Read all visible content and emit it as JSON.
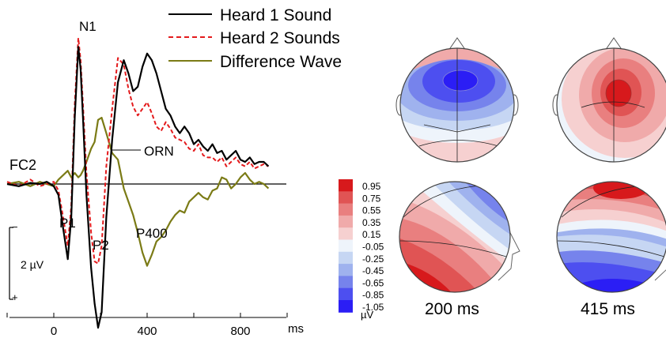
{
  "chart_data": [
    {
      "type": "line",
      "channel_label": "FC2",
      "xlabel": "ms",
      "x_ticks": [
        0,
        400,
        800
      ],
      "xlim": [
        -200,
        1000
      ],
      "amplitude_scale": {
        "label": "2 µV",
        "negative_sign": "−",
        "positive_sign": "+"
      },
      "grid": false,
      "legend_position": "top-right",
      "series": [
        {
          "name": "Heard 1 Sound",
          "color": "#000000",
          "dash": "solid",
          "x": [
            -200,
            -150,
            -100,
            -60,
            -30,
            0,
            20,
            40,
            60,
            75,
            90,
            105,
            115,
            125,
            140,
            160,
            175,
            190,
            205,
            225,
            250,
            275,
            300,
            320,
            340,
            360,
            380,
            400,
            420,
            440,
            460,
            480,
            500,
            520,
            540,
            560,
            580,
            600,
            620,
            640,
            660,
            680,
            700,
            720,
            740,
            760,
            780,
            800,
            820,
            840,
            860,
            880,
            900,
            920
          ],
          "y": [
            0.0,
            -0.1,
            0.05,
            0.0,
            0.1,
            -0.1,
            -0.5,
            -2.0,
            -3.4,
            -1.5,
            3.0,
            6.2,
            5.2,
            3.0,
            -0.5,
            -3.8,
            -5.4,
            -6.5,
            -5.8,
            -1.5,
            2.0,
            4.6,
            5.6,
            5.0,
            4.2,
            4.4,
            5.3,
            5.9,
            5.6,
            5.0,
            4.2,
            3.4,
            3.1,
            2.6,
            2.3,
            2.6,
            2.3,
            1.8,
            2.0,
            1.7,
            1.5,
            1.8,
            1.4,
            1.5,
            1.1,
            1.3,
            1.5,
            1.1,
            1.0,
            1.2,
            0.9,
            1.0,
            1.0,
            0.8
          ]
        },
        {
          "name": "Heard 2 Sounds",
          "color": "#e41a1c",
          "dash": "dashed",
          "x": [
            -200,
            -150,
            -100,
            -60,
            -30,
            0,
            20,
            40,
            60,
            75,
            90,
            105,
            115,
            125,
            140,
            160,
            175,
            190,
            205,
            225,
            250,
            275,
            300,
            320,
            340,
            360,
            380,
            400,
            420,
            440,
            460,
            480,
            500,
            520,
            540,
            560,
            580,
            600,
            620,
            640,
            660,
            680,
            700,
            720,
            740,
            760,
            780,
            800,
            820,
            840,
            860,
            880,
            900,
            920
          ],
          "y": [
            0.1,
            -0.1,
            0.2,
            -0.1,
            0.0,
            0.1,
            -0.3,
            -1.5,
            -2.8,
            -1.0,
            3.6,
            6.6,
            5.6,
            3.6,
            0.5,
            -2.2,
            -3.5,
            -3.6,
            -2.8,
            0.8,
            3.4,
            5.7,
            5.4,
            4.3,
            3.5,
            3.1,
            3.4,
            3.7,
            3.2,
            2.6,
            2.4,
            2.8,
            2.5,
            2.1,
            2.0,
            1.9,
            1.6,
            1.5,
            1.8,
            1.3,
            1.2,
            1.2,
            1.0,
            1.2,
            0.8,
            1.0,
            1.2,
            0.9,
            0.8,
            1.0,
            0.7,
            0.8,
            0.9,
            0.8
          ]
        },
        {
          "name": "Difference Wave",
          "color": "#7b7b16",
          "dash": "solid",
          "x": [
            -200,
            -150,
            -100,
            -60,
            -30,
            0,
            20,
            40,
            60,
            75,
            90,
            105,
            115,
            125,
            140,
            160,
            175,
            190,
            205,
            225,
            250,
            275,
            300,
            320,
            340,
            360,
            380,
            400,
            420,
            440,
            460,
            480,
            500,
            520,
            540,
            560,
            580,
            600,
            620,
            640,
            660,
            680,
            700,
            720,
            740,
            760,
            780,
            800,
            820,
            840,
            860,
            880,
            900,
            920
          ],
          "y": [
            0.0,
            0.1,
            -0.1,
            0.1,
            0.0,
            -0.1,
            0.2,
            0.4,
            0.6,
            0.3,
            0.5,
            0.3,
            0.4,
            0.6,
            1.0,
            1.6,
            1.9,
            2.9,
            3.0,
            2.3,
            1.4,
            1.1,
            -0.2,
            -0.8,
            -1.4,
            -2.2,
            -3.1,
            -3.7,
            -3.2,
            -2.6,
            -2.4,
            -2.1,
            -1.7,
            -1.4,
            -1.2,
            -1.3,
            -0.8,
            -0.6,
            -0.4,
            -0.6,
            -0.7,
            -0.3,
            -0.2,
            0.3,
            0.2,
            -0.2,
            0.0,
            0.3,
            0.5,
            0.2,
            0.0,
            0.1,
            0.0,
            -0.2
          ]
        }
      ],
      "annotations": [
        {
          "text": "N1",
          "x": 115,
          "y": 6.2
        },
        {
          "text": "P1",
          "x": 60,
          "y": -3.4
        },
        {
          "text": "P2",
          "x": 190,
          "y": -6.5
        },
        {
          "text": "ORN",
          "x": 205,
          "y": 3.0
        },
        {
          "text": "P400",
          "x": 400,
          "y": -3.7
        }
      ]
    },
    {
      "type": "heatmap",
      "colorbar": {
        "unit": "µV",
        "levels": [
          "0.95",
          "0.75",
          "0.55",
          "0.35",
          "0.15",
          "-0.05",
          "-0.25",
          "-0.45",
          "-0.65",
          "-0.85",
          "-1.05"
        ],
        "colors": [
          "#d7191c",
          "#e05454",
          "#e97f7f",
          "#f0aaaa",
          "#f6d0d0",
          "#eef4fb",
          "#c6d6f3",
          "#9fb2ee",
          "#7683ec",
          "#4d4ff0",
          "#2b1ef5"
        ]
      },
      "timepoints": [
        {
          "label": "200 ms",
          "top_view": "frontal-central negative",
          "side_view": "frontal negative, posterior positive"
        },
        {
          "label": "415 ms",
          "top_view": "central positive",
          "side_view": "frontal positive, posterior negative"
        }
      ]
    }
  ]
}
